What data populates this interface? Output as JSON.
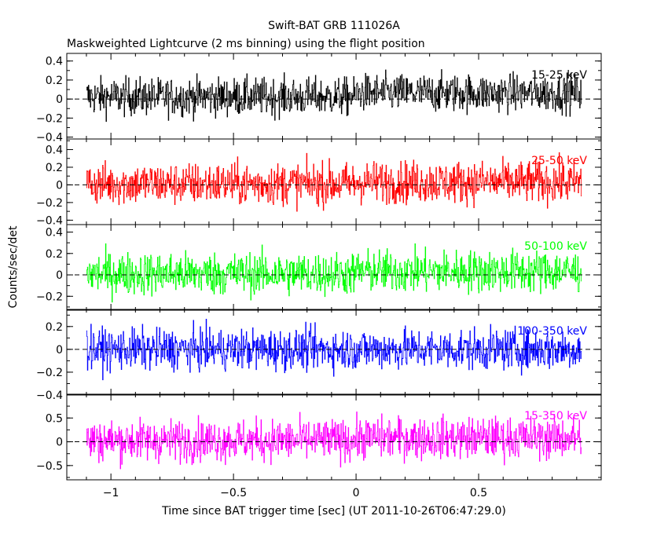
{
  "chart_data": {
    "type": "line",
    "title": "Swift-BAT GRB 111026A",
    "subtitle": "Maskweighted Lightcurve (2 ms binning) using the flight position",
    "xlabel": "Time since BAT trigger time [sec] (UT 2011-10-26T06:47:29.0)",
    "ylabel": "Counts/sec/det",
    "xlim": [
      -1.18,
      1.0
    ],
    "x_range_data": [
      -1.1,
      0.92
    ],
    "bin_width_sec": 0.002,
    "x_ticks": [
      -1,
      -0.5,
      0,
      0.5
    ],
    "x_tick_labels": [
      "−1",
      "−0.5",
      "0",
      "0.5"
    ],
    "zero_line": "dashed",
    "panels": [
      {
        "name": "15-25 keV",
        "color": "#000000",
        "ylim": [
          -0.42,
          0.48
        ],
        "yticks": [
          -0.4,
          -0.2,
          0,
          0.2,
          0.4
        ],
        "ytick_labels": [
          "−0.4",
          "−0.2",
          "0",
          "0.2",
          "0.4"
        ],
        "noise_amplitude": 0.1,
        "offset": 0.04
      },
      {
        "name": "25-50 keV",
        "color": "#ff0000",
        "ylim": [
          -0.45,
          0.52
        ],
        "yticks": [
          -0.4,
          -0.2,
          0,
          0.2,
          0.4
        ],
        "ytick_labels": [
          "−0.4",
          "−0.2",
          "0",
          "0.2",
          "0.4"
        ],
        "noise_amplitude": 0.12,
        "offset": 0.02
      },
      {
        "name": "50-100 keV",
        "color": "#00ff00",
        "ylim": [
          -0.33,
          0.47
        ],
        "yticks": [
          -0.2,
          0,
          0.2,
          0.4
        ],
        "ytick_labels": [
          "−0.2",
          "0",
          "0.2",
          "0.4"
        ],
        "noise_amplitude": 0.1,
        "offset": 0.02
      },
      {
        "name": "100-350 keV",
        "color": "#0000ff",
        "ylim": [
          -0.4,
          0.35
        ],
        "yticks": [
          -0.4,
          -0.2,
          0,
          0.2
        ],
        "ytick_labels": [
          "−0.4",
          "−0.2",
          "0",
          "0.2"
        ],
        "noise_amplitude": 0.09,
        "offset": 0.0
      },
      {
        "name": "15-350 keV",
        "color": "#ff00ff",
        "ylim": [
          -0.8,
          1.0
        ],
        "yticks": [
          -0.5,
          0,
          0.5
        ],
        "ytick_labels": [
          "−0.5",
          "0",
          "0.5"
        ],
        "noise_amplitude": 0.22,
        "offset": 0.05
      }
    ]
  }
}
